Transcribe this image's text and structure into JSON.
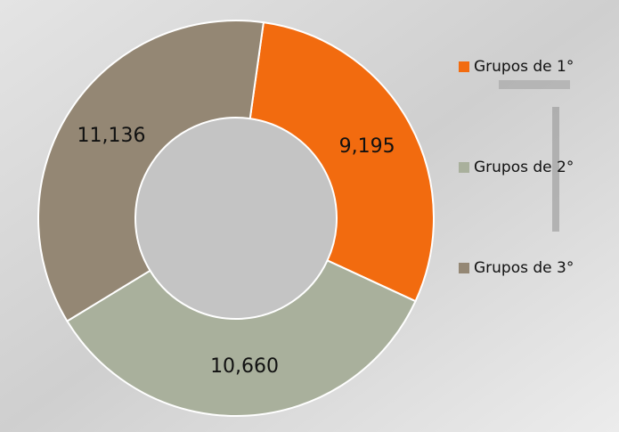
{
  "chart_data": {
    "type": "donut",
    "categories": [
      "Grupos de 1°",
      "Grupos de 2°",
      "Grupos de 3°"
    ],
    "values": [
      9195,
      10660,
      11136
    ],
    "value_labels": [
      "9,195",
      "10,660",
      "11,136"
    ],
    "colors": [
      "#f26b0f",
      "#a9b09c",
      "#948774"
    ],
    "legend": "right"
  }
}
